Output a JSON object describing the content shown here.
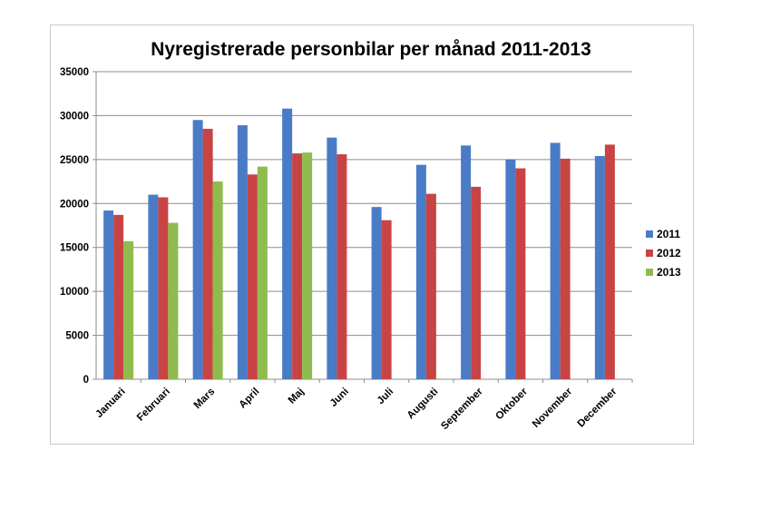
{
  "chart_data": {
    "type": "bar",
    "title": "Nyregistrerade personbilar per månad 2011-2013",
    "xlabel": "",
    "ylabel": "",
    "ylim": [
      0,
      35000
    ],
    "yticks": [
      "0",
      "5000",
      "10000",
      "15000",
      "20000",
      "25000",
      "30000",
      "35000"
    ],
    "grid": true,
    "legend_position": "right",
    "categories": [
      "Januari",
      "Februari",
      "Mars",
      "April",
      "Maj",
      "Juni",
      "Juli",
      "Augusti",
      "September",
      "Oktober",
      "November",
      "December"
    ],
    "series": [
      {
        "name": "2011",
        "color": "#4a7bc6",
        "values": [
          19200,
          21000,
          29500,
          28900,
          30800,
          27500,
          19600,
          24400,
          26600,
          25000,
          26900,
          25400
        ]
      },
      {
        "name": "2012",
        "color": "#c84444",
        "values": [
          18700,
          20700,
          28500,
          23300,
          25700,
          25600,
          18100,
          21100,
          21900,
          24000,
          25100,
          26700
        ]
      },
      {
        "name": "2013",
        "color": "#8fbc4e",
        "values": [
          15700,
          17800,
          22500,
          24200,
          25800,
          null,
          null,
          null,
          null,
          null,
          null,
          null
        ]
      }
    ]
  }
}
